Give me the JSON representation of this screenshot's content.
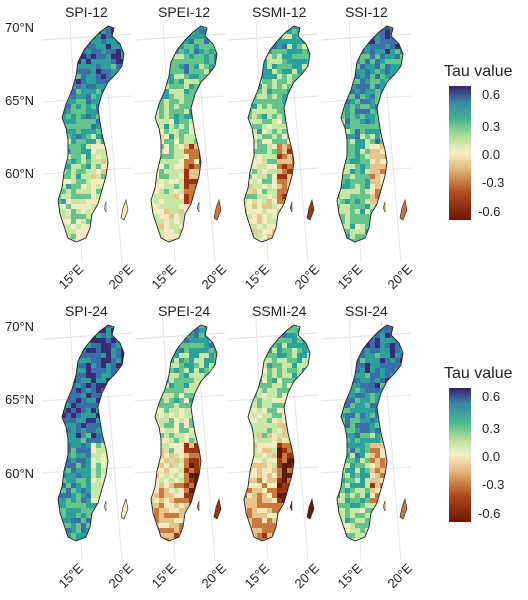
{
  "rows": [
    {
      "panels": [
        {
          "title": "SPI-12",
          "north": 0.55,
          "south": 0.0,
          "east": -0.05
        },
        {
          "title": "SPEI-12",
          "north": 0.35,
          "south": -0.1,
          "east": -0.4
        },
        {
          "title": "SSMI-12",
          "north": 0.3,
          "south": -0.1,
          "east": -0.5
        },
        {
          "title": "SSI-12",
          "north": 0.45,
          "south": 0.1,
          "east": -0.3
        }
      ],
      "lat_labels": [
        "70°N",
        "65°N",
        "60°N"
      ],
      "lon_labels": [
        "15°E",
        "20°E"
      ],
      "legend": {
        "title": "Tau value",
        "ticks": [
          "0.6",
          "0.3",
          "0.0",
          "-0.3",
          "-0.6"
        ]
      }
    },
    {
      "panels": [
        {
          "title": "SPI-24",
          "north": 0.55,
          "south": 0.3,
          "east": -0.1
        },
        {
          "title": "SPEI-24",
          "north": 0.35,
          "south": -0.3,
          "east": -0.5
        },
        {
          "title": "SSMI-24",
          "north": 0.3,
          "south": -0.35,
          "east": -0.6
        },
        {
          "title": "SSI-24",
          "north": 0.5,
          "south": 0.1,
          "east": -0.4
        }
      ],
      "lat_labels": [
        "70°N",
        "65°N",
        "60°N"
      ],
      "lon_labels": [
        "15°E",
        "20°E"
      ],
      "legend": {
        "title": "Tau value",
        "ticks": [
          "0.6",
          "0.3",
          "0.0",
          "-0.3",
          "-0.6"
        ]
      }
    }
  ],
  "colorscale": [
    "#5a1e08",
    "#9c3414",
    "#c8793e",
    "#e6c48c",
    "#f4ecc0",
    "#c8e6a4",
    "#64c48c",
    "#2ca09a",
    "#3a6fa8",
    "#3a2a78"
  ]
}
